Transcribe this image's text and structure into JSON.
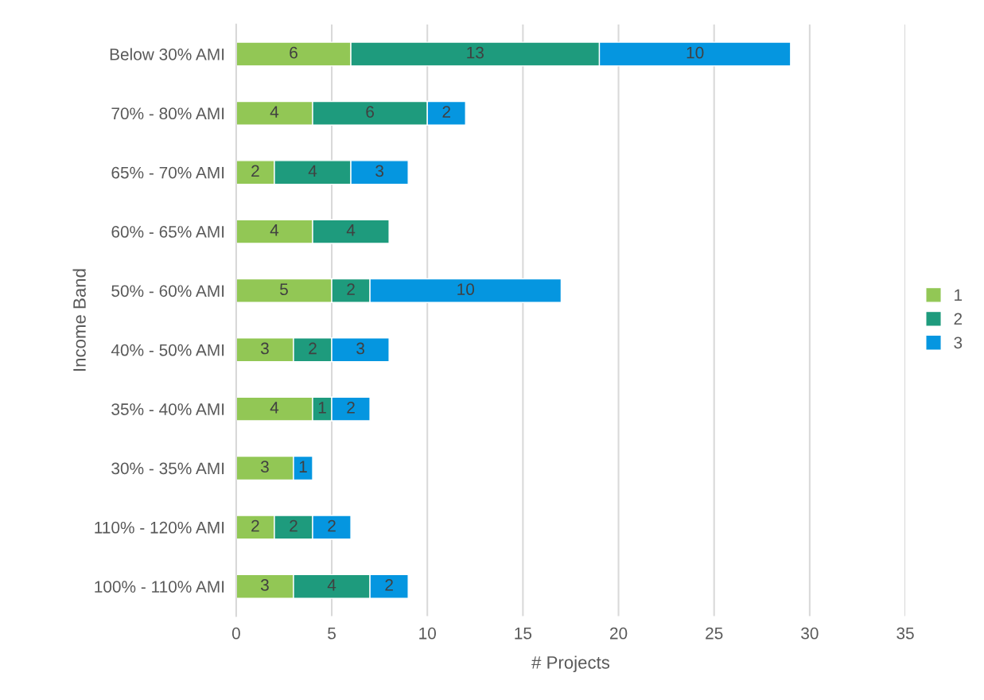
{
  "chart_data": {
    "type": "bar",
    "orientation": "horizontal",
    "stacked": true,
    "ylabel": "Income Band",
    "xlabel": "# Projects",
    "categories": [
      "Below 30% AMI",
      "70% - 80% AMI",
      "65% - 70% AMI",
      "60% - 65% AMI",
      "50% - 60% AMI",
      "40% - 50% AMI",
      "35% - 40% AMI",
      "30% - 35% AMI",
      "110% - 120% AMI",
      "100% - 110% AMI"
    ],
    "series": [
      {
        "name": "1",
        "color": "#92c755",
        "values": [
          6,
          4,
          2,
          4,
          5,
          3,
          4,
          3,
          2,
          3
        ]
      },
      {
        "name": "2",
        "color": "#1e9b7d",
        "values": [
          13,
          6,
          4,
          4,
          2,
          2,
          1,
          null,
          2,
          4
        ]
      },
      {
        "name": "3",
        "color": "#0596e0",
        "values": [
          10,
          2,
          3,
          null,
          10,
          3,
          2,
          1,
          2,
          2
        ]
      }
    ],
    "xlim": [
      0,
      35
    ],
    "xticks": [
      0,
      5,
      10,
      15,
      20,
      25,
      30,
      35
    ],
    "grid": "x",
    "legend": "right",
    "data_labels": true
  }
}
